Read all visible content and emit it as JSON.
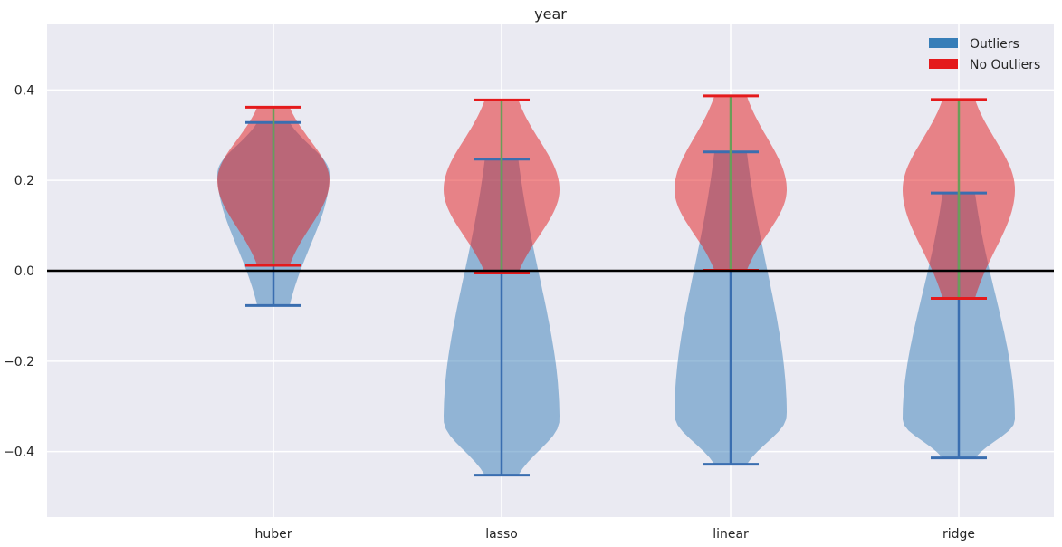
{
  "chart_data": {
    "type": "violin",
    "title": "year",
    "xlabel": "",
    "ylabel": "",
    "categories": [
      "huber",
      "lasso",
      "linear",
      "ridge"
    ],
    "ylim": [
      -0.545,
      0.545
    ],
    "yticks": [
      -0.4,
      -0.2,
      0.0,
      0.2,
      0.4
    ],
    "ytick_labels": [
      "−0.4",
      "−0.2",
      "0.0",
      "0.2",
      "0.4"
    ],
    "grid": true,
    "reference_line_y": 0.0,
    "legend_position": "top-right",
    "series": [
      {
        "name": "Outliers",
        "color": "#377eb8",
        "stats": [
          {
            "min": -0.077,
            "max": 0.328,
            "mode": 0.215
          },
          {
            "min": -0.452,
            "max": 0.247,
            "mode": -0.33
          },
          {
            "min": -0.428,
            "max": 0.263,
            "mode": -0.32
          },
          {
            "min": -0.414,
            "max": 0.172,
            "mode": -0.33
          }
        ]
      },
      {
        "name": "No Outliers",
        "color": "#e41a1c",
        "stats": [
          {
            "min": 0.012,
            "max": 0.362,
            "mode": 0.2
          },
          {
            "min": -0.005,
            "max": 0.378,
            "mode": 0.18
          },
          {
            "min": 0.001,
            "max": 0.387,
            "mode": 0.18
          },
          {
            "min": -0.061,
            "max": 0.379,
            "mode": 0.18
          }
        ]
      }
    ]
  }
}
